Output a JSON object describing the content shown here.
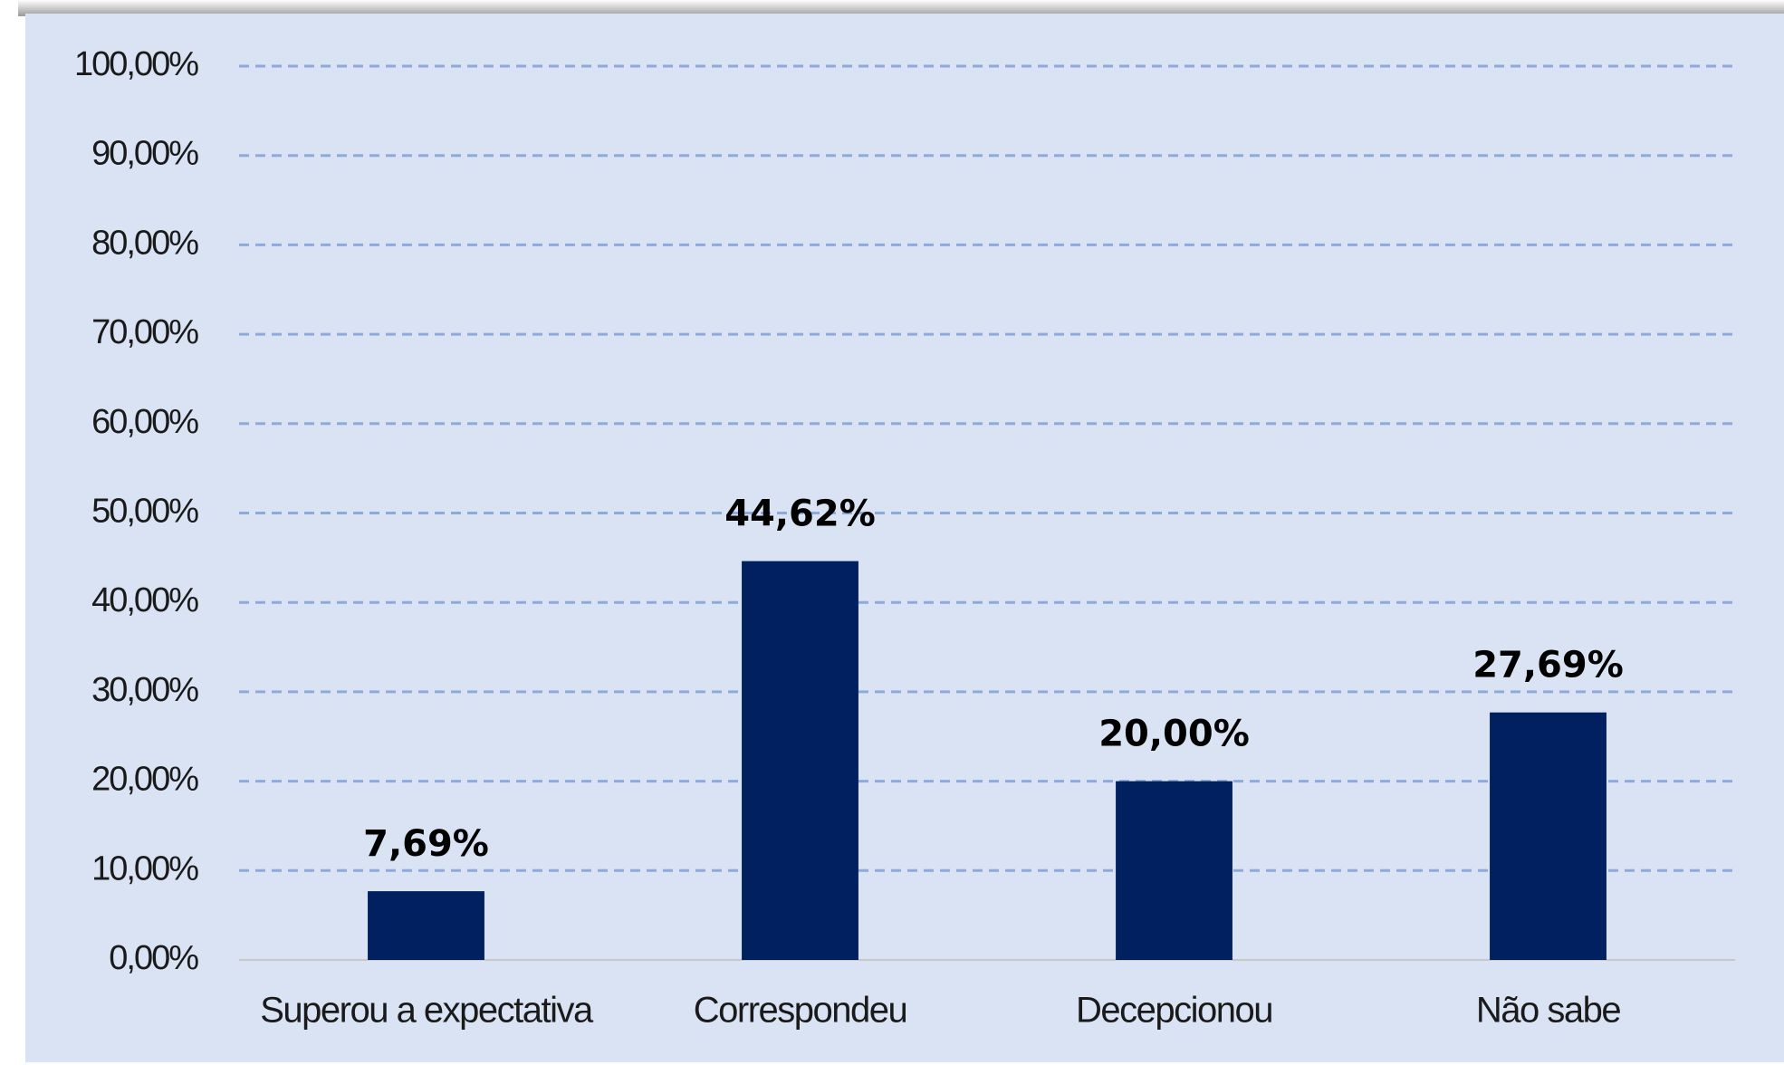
{
  "chart_data": {
    "type": "bar",
    "categories": [
      "Superou a expectativa",
      "Correspondeu",
      "Decepcionou",
      "Não sabe"
    ],
    "values": [
      7.69,
      44.62,
      20,
      27.69
    ],
    "value_labels": [
      "7,69%",
      "44,62%",
      "20,00%",
      "27,69%"
    ],
    "color": "#002060",
    "ylim": [
      0,
      100
    ],
    "yticks": [
      {
        "value": 0,
        "label": "0,00%"
      },
      {
        "value": 10,
        "label": "10,00%"
      },
      {
        "value": 20,
        "label": "20,00%"
      },
      {
        "value": 30,
        "label": "30,00%"
      },
      {
        "value": 40,
        "label": "40,00%"
      },
      {
        "value": 50,
        "label": "50,00%"
      },
      {
        "value": 60,
        "label": "60,00%"
      },
      {
        "value": 70,
        "label": "70,00%"
      },
      {
        "value": 80,
        "label": "80,00%"
      },
      {
        "value": 90,
        "label": "90,00%"
      },
      {
        "value": 100,
        "label": "100,00%"
      }
    ],
    "grid": true
  }
}
